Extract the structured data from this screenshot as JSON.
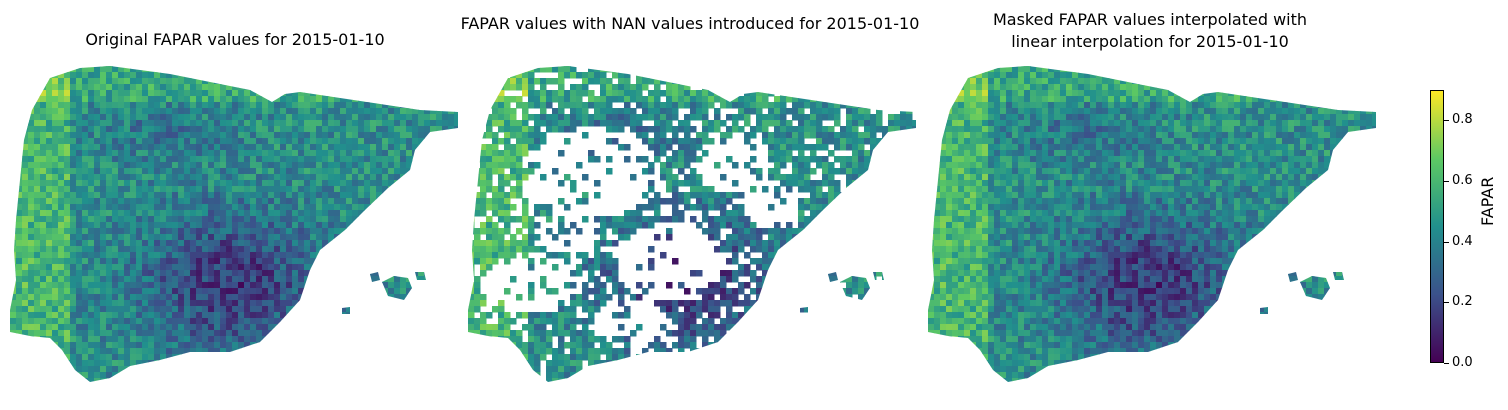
{
  "panels": [
    {
      "title": "Original FAPAR values for 2015-01-10",
      "mask": "none"
    },
    {
      "title": "FAPAR values with NAN values introduced for 2015-01-10",
      "mask": "nan"
    },
    {
      "title": "Masked FAPAR values interpolated with\nlinear interpolation for 2015-01-10",
      "mask": "none"
    }
  ],
  "colorbar": {
    "label": "FAPAR",
    "colormap": "viridis",
    "range": [
      0.0,
      0.9
    ],
    "ticks": [
      "0.0",
      "0.2",
      "0.4",
      "0.6",
      "0.8"
    ],
    "stops": [
      "#440154",
      "#3b528b",
      "#21908d",
      "#5dc963",
      "#fde725"
    ]
  }
}
